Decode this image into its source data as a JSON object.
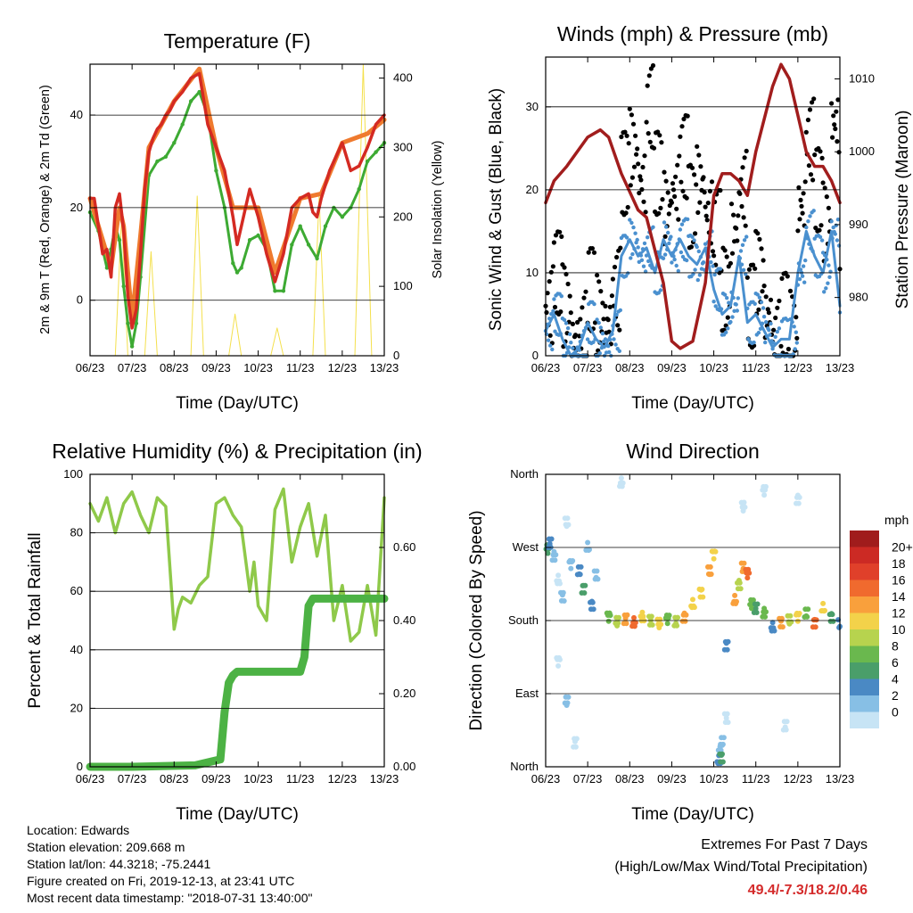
{
  "chart_data": [
    {
      "type": "line",
      "title": "Temperature (F)",
      "xlabel": "Time (Day/UTC)",
      "ylabel": "2m & 9m T (Red, Orange) & 2m Td (Green)",
      "y2label": "Solar Insolation (Yellow)",
      "ylim": [
        -12,
        51
      ],
      "y2lim": [
        0,
        420
      ],
      "x_ticks": [
        "06/23",
        "07/23",
        "08/23",
        "09/23",
        "10/23",
        "11/23",
        "12/23",
        "13/23"
      ],
      "y_ticks": [
        0,
        20,
        40
      ],
      "y2_ticks": [
        0,
        100,
        200,
        300,
        400
      ],
      "grid": true,
      "series": [
        {
          "name": "2m T",
          "color": "#d42a22",
          "x": [
            0,
            0.1,
            0.2,
            0.3,
            0.4,
            0.5,
            0.6,
            0.7,
            0.8,
            0.9,
            1.0,
            1.1,
            1.2,
            1.3,
            1.4,
            1.5,
            1.6,
            1.7,
            1.8,
            1.9,
            2.0,
            2.2,
            2.4,
            2.6,
            2.8,
            3.0,
            3.2,
            3.4,
            3.5,
            3.6,
            3.8,
            4.0,
            4.2,
            4.4,
            4.6,
            4.8,
            5.0,
            5.2,
            5.3,
            5.4,
            5.5,
            5.6,
            5.7,
            5.8,
            6.0,
            6.2,
            6.4,
            6.6,
            6.8,
            7.0
          ],
          "y": [
            22,
            22,
            16,
            10,
            11,
            5,
            20,
            23,
            15,
            1,
            -6,
            -2,
            10,
            24,
            32,
            35,
            37,
            38,
            40,
            41,
            43,
            45,
            48,
            49,
            38,
            33,
            28,
            18,
            12,
            16,
            24,
            18,
            10,
            4,
            10,
            20,
            22,
            23,
            19,
            18,
            22,
            25,
            28,
            30,
            34,
            28,
            29,
            33,
            38,
            40
          ]
        },
        {
          "name": "9m T",
          "color": "#ef7a2e",
          "x": [
            0,
            0.5,
            0.7,
            0.8,
            1.0,
            1.2,
            1.4,
            2.0,
            2.6,
            3.0,
            3.4,
            4.0,
            4.4,
            5.0,
            5.5,
            6.0,
            6.6,
            7.0
          ],
          "y": [
            22,
            7,
            20,
            16,
            -4,
            14,
            33,
            43,
            50,
            33,
            20,
            20,
            6,
            22,
            23,
            34,
            36,
            39
          ]
        },
        {
          "name": "2m Td",
          "color": "#3daa33",
          "x": [
            0,
            0.2,
            0.4,
            0.5,
            0.6,
            0.7,
            0.8,
            0.9,
            1.0,
            1.1,
            1.2,
            1.4,
            1.6,
            1.8,
            2.0,
            2.2,
            2.4,
            2.6,
            2.8,
            3.0,
            3.2,
            3.4,
            3.5,
            3.6,
            3.8,
            4.0,
            4.2,
            4.4,
            4.6,
            4.8,
            5.0,
            5.2,
            5.4,
            5.6,
            5.8,
            6.0,
            6.2,
            6.4,
            6.6,
            6.8,
            7.0
          ],
          "y": [
            19,
            15,
            7,
            11,
            16,
            13,
            3,
            -5,
            -10,
            -5,
            5,
            27,
            30,
            31,
            34,
            38,
            43,
            45,
            40,
            28,
            20,
            8,
            6,
            7,
            13,
            14,
            11,
            2,
            2,
            12,
            16,
            12,
            9,
            16,
            20,
            18,
            20,
            24,
            30,
            32,
            34
          ]
        },
        {
          "name": "Solar Insolation",
          "color": "#f4e04d",
          "axis": "y2",
          "x": [
            0.6,
            0.75,
            0.9,
            1.3,
            1.45,
            1.6,
            2.4,
            2.55,
            2.7,
            3.3,
            3.45,
            3.6,
            4.3,
            4.45,
            4.6,
            5.3,
            5.45,
            5.6,
            6.3,
            6.5,
            6.7
          ],
          "y": [
            0,
            200,
            0,
            0,
            150,
            0,
            0,
            230,
            0,
            0,
            60,
            0,
            0,
            40,
            0,
            0,
            230,
            0,
            0,
            420,
            0
          ]
        }
      ]
    },
    {
      "type": "scatter",
      "title": "Winds (mph) & Pressure (mb)",
      "xlabel": "Time (Day/UTC)",
      "ylabel": "Sonic Wind & Gust (Blue, Black)",
      "y2label": "Station Pressure (Maroon)",
      "ylim": [
        0,
        36
      ],
      "y2lim": [
        972,
        1013
      ],
      "x_ticks": [
        "06/23",
        "07/23",
        "08/23",
        "09/23",
        "10/23",
        "11/23",
        "12/23",
        "13/23"
      ],
      "y_ticks": [
        0,
        10,
        20,
        30
      ],
      "y2_ticks": [
        980,
        990,
        1000,
        1010
      ],
      "grid": true,
      "series": [
        {
          "name": "Gust",
          "color": "#000000",
          "x": [
            0,
            0.2,
            0.4,
            0.6,
            0.8,
            1.0,
            1.2,
            1.4,
            1.6,
            1.8,
            2.0,
            2.2,
            2.4,
            2.6,
            2.8,
            3.0,
            3.2,
            3.4,
            3.6,
            3.8,
            4.0,
            4.2,
            4.4,
            4.6,
            4.8,
            5.0,
            5.2,
            5.4,
            5.6,
            5.8,
            6.0,
            6.2,
            6.4,
            6.6,
            6.8,
            7.0
          ],
          "y": [
            6,
            10,
            6,
            2,
            3,
            8,
            5,
            4,
            8,
            22,
            25,
            21,
            30,
            22,
            18,
            20,
            24,
            18,
            21,
            17,
            15,
            8,
            15,
            20,
            6,
            10,
            5,
            2,
            5,
            3,
            18,
            26,
            20,
            16,
            28,
            12
          ]
        },
        {
          "name": "Sonic Wind",
          "color": "#4a90cf",
          "x": [
            0,
            0.2,
            0.4,
            0.6,
            0.8,
            1.0,
            1.2,
            1.4,
            1.6,
            1.8,
            2.0,
            2.2,
            2.4,
            2.6,
            2.8,
            3.0,
            3.2,
            3.4,
            3.6,
            3.8,
            4.0,
            4.2,
            4.4,
            4.6,
            4.8,
            5.0,
            5.2,
            5.4,
            5.6,
            5.8,
            6.0,
            6.2,
            6.4,
            6.6,
            6.8,
            7.0
          ],
          "y": [
            3,
            5,
            2,
            0,
            1,
            4,
            2,
            1,
            3,
            12,
            14,
            12,
            13,
            10,
            14,
            12,
            14,
            12,
            11,
            13,
            8,
            5,
            6,
            12,
            4,
            5,
            3,
            1,
            2,
            2,
            10,
            15,
            12,
            10,
            15,
            6
          ]
        },
        {
          "name": "Station Pressure",
          "color": "#a11d1d",
          "axis": "y2",
          "x": [
            0,
            0.2,
            0.5,
            1.0,
            1.3,
            1.5,
            1.8,
            2.2,
            2.4,
            2.8,
            3.0,
            3.2,
            3.5,
            3.8,
            4.0,
            4.2,
            4.4,
            4.6,
            4.8,
            5.0,
            5.4,
            5.6,
            5.8,
            6.0,
            6.2,
            6.4,
            6.6,
            6.8,
            7.0
          ],
          "y": [
            993,
            996,
            998,
            1002,
            1003,
            1002,
            997,
            992,
            991,
            982,
            974,
            973,
            974,
            982,
            994,
            997,
            997,
            996,
            994,
            1000,
            1009,
            1012,
            1010,
            1005,
            1000,
            998,
            998,
            996,
            993
          ]
        }
      ]
    },
    {
      "type": "line",
      "title": "Relative Humidity (%) & Precipitation (in)",
      "xlabel": "Time (Day/UTC)",
      "ylabel": "Percent & Total Rainfall",
      "ylim": [
        0,
        100
      ],
      "y2lim": [
        0,
        0.8
      ],
      "x_ticks": [
        "06/23",
        "07/23",
        "08/23",
        "09/23",
        "10/23",
        "11/23",
        "12/23",
        "13/23"
      ],
      "y_ticks": [
        0,
        20,
        40,
        60,
        80,
        100
      ],
      "y2_ticks": [
        "0.00",
        "0.20",
        "0.40",
        "0.60"
      ],
      "grid": true,
      "series": [
        {
          "name": "Relative Humidity",
          "color": "#8fc94a",
          "x": [
            0,
            0.2,
            0.4,
            0.6,
            0.8,
            1.0,
            1.2,
            1.4,
            1.6,
            1.8,
            2.0,
            2.1,
            2.2,
            2.4,
            2.6,
            2.8,
            3.0,
            3.2,
            3.4,
            3.6,
            3.8,
            3.9,
            4.0,
            4.2,
            4.4,
            4.6,
            4.8,
            5.0,
            5.2,
            5.4,
            5.6,
            5.8,
            6.0,
            6.2,
            6.4,
            6.6,
            6.8,
            7.0
          ],
          "y": [
            90,
            84,
            92,
            80,
            90,
            94,
            86,
            80,
            92,
            89,
            47,
            54,
            58,
            56,
            62,
            65,
            90,
            92,
            86,
            82,
            60,
            70,
            55,
            50,
            88,
            95,
            70,
            82,
            90,
            72,
            86,
            50,
            62,
            43,
            46,
            62,
            45,
            92
          ]
        },
        {
          "name": "Total Rainfall",
          "color": "#4cb244",
          "axis": "y2",
          "x": [
            0,
            1.0,
            2.5,
            3.1,
            3.2,
            3.3,
            3.4,
            3.5,
            3.6,
            5.0,
            5.1,
            5.2,
            5.3,
            5.4,
            7.0
          ],
          "y": [
            0,
            0,
            0.004,
            0.02,
            0.15,
            0.23,
            0.25,
            0.26,
            0.26,
            0.26,
            0.3,
            0.44,
            0.46,
            0.46,
            0.46
          ]
        }
      ]
    },
    {
      "type": "scatter",
      "title": "Wind Direction",
      "xlabel": "Time (Day/UTC)",
      "ylabel": "Direction (Colored By Speed)",
      "ylim": [
        0,
        360
      ],
      "x_ticks": [
        "06/23",
        "07/23",
        "08/23",
        "09/23",
        "10/23",
        "11/23",
        "12/23",
        "13/23"
      ],
      "y_ticks": [
        "North",
        "East",
        "South",
        "West",
        "North"
      ],
      "grid": true,
      "legend_title": "mph",
      "legend_labels": [
        "20+",
        "18",
        "16",
        "14",
        "12",
        "10",
        "8",
        "6",
        "4",
        "2",
        "0"
      ],
      "legend_colors": [
        "#a01c1c",
        "#cc2a24",
        "#e0402a",
        "#f06a2e",
        "#f9a03c",
        "#f3d24a",
        "#b7d34e",
        "#6ab84e",
        "#4a9e6a",
        "#4a89c4",
        "#87bfe5",
        "#c7e4f5"
      ],
      "points": [
        {
          "t": 0.05,
          "d": 268,
          "s": 6
        },
        {
          "t": 0.1,
          "d": 275,
          "s": 4
        },
        {
          "t": 0.2,
          "d": 260,
          "s": 2
        },
        {
          "t": 0.3,
          "d": 230,
          "s": 1
        },
        {
          "t": 0.4,
          "d": 210,
          "s": 2
        },
        {
          "t": 0.5,
          "d": 300,
          "s": 1
        },
        {
          "t": 0.6,
          "d": 250,
          "s": 3
        },
        {
          "t": 0.8,
          "d": 240,
          "s": 5
        },
        {
          "t": 0.9,
          "d": 220,
          "s": 7
        },
        {
          "t": 1.0,
          "d": 270,
          "s": 3
        },
        {
          "t": 1.1,
          "d": 200,
          "s": 4
        },
        {
          "t": 1.2,
          "d": 235,
          "s": 2
        },
        {
          "t": 1.5,
          "d": 185,
          "s": 9
        },
        {
          "t": 1.7,
          "d": 178,
          "s": 11
        },
        {
          "t": 1.9,
          "d": 182,
          "s": 14
        },
        {
          "t": 2.1,
          "d": 178,
          "s": 17
        },
        {
          "t": 2.3,
          "d": 185,
          "s": 13
        },
        {
          "t": 2.5,
          "d": 180,
          "s": 10
        },
        {
          "t": 2.7,
          "d": 176,
          "s": 12
        },
        {
          "t": 2.9,
          "d": 182,
          "s": 8
        },
        {
          "t": 3.1,
          "d": 178,
          "s": 11
        },
        {
          "t": 3.3,
          "d": 185,
          "s": 15
        },
        {
          "t": 3.5,
          "d": 200,
          "s": 13
        },
        {
          "t": 3.7,
          "d": 215,
          "s": 12
        },
        {
          "t": 3.9,
          "d": 240,
          "s": 14
        },
        {
          "t": 4.0,
          "d": 262,
          "s": 12
        },
        {
          "t": 4.2,
          "d": 30,
          "s": 3
        },
        {
          "t": 4.3,
          "d": 150,
          "s": 4
        },
        {
          "t": 4.5,
          "d": 205,
          "s": 14
        },
        {
          "t": 4.6,
          "d": 225,
          "s": 11
        },
        {
          "t": 4.7,
          "d": 245,
          "s": 15
        },
        {
          "t": 4.8,
          "d": 238,
          "s": 17
        },
        {
          "t": 4.9,
          "d": 200,
          "s": 8
        },
        {
          "t": 5.0,
          "d": 195,
          "s": 6
        },
        {
          "t": 5.2,
          "d": 190,
          "s": 9
        },
        {
          "t": 5.4,
          "d": 172,
          "s": 5
        },
        {
          "t": 5.6,
          "d": 178,
          "s": 15
        },
        {
          "t": 5.8,
          "d": 180,
          "s": 11
        },
        {
          "t": 6.0,
          "d": 185,
          "s": 13
        },
        {
          "t": 6.2,
          "d": 188,
          "s": 9
        },
        {
          "t": 6.4,
          "d": 178,
          "s": 16
        },
        {
          "t": 6.6,
          "d": 195,
          "s": 13
        },
        {
          "t": 6.8,
          "d": 185,
          "s": 6
        },
        {
          "t": 7.0,
          "d": 175,
          "s": 4
        },
        {
          "t": 0.3,
          "d": 130,
          "s": 1
        },
        {
          "t": 0.5,
          "d": 80,
          "s": 3
        },
        {
          "t": 0.7,
          "d": 30,
          "s": 1
        },
        {
          "t": 1.8,
          "d": 350,
          "s": 1
        },
        {
          "t": 4.15,
          "d": 20,
          "s": 2
        },
        {
          "t": 4.3,
          "d": 60,
          "s": 1
        },
        {
          "t": 4.7,
          "d": 320,
          "s": 1
        },
        {
          "t": 5.2,
          "d": 340,
          "s": 1
        },
        {
          "t": 5.7,
          "d": 50,
          "s": 1
        },
        {
          "t": 6.0,
          "d": 330,
          "s": 1
        },
        {
          "t": 4.12,
          "d": 8,
          "s": 5
        },
        {
          "t": 4.18,
          "d": 12,
          "s": 7
        }
      ]
    }
  ],
  "info": {
    "location": "Location: Edwards",
    "elevation": "Station elevation: 209.668 m",
    "latlon": "Station lat/lon: 44.3218; -75.2441",
    "created": "Figure created on Fri, 2019-12-13, at 23:41 UTC",
    "recent": "Most recent data timestamp: \"2018-07-31 13:40:00\""
  },
  "extremes": {
    "title": "Extremes For Past 7 Days",
    "subtitle": "(High/Low/Max Wind/Total Precipitation)",
    "values": "49.4/-7.3/18.2/0.46",
    "value_color": "#d42a2a"
  }
}
